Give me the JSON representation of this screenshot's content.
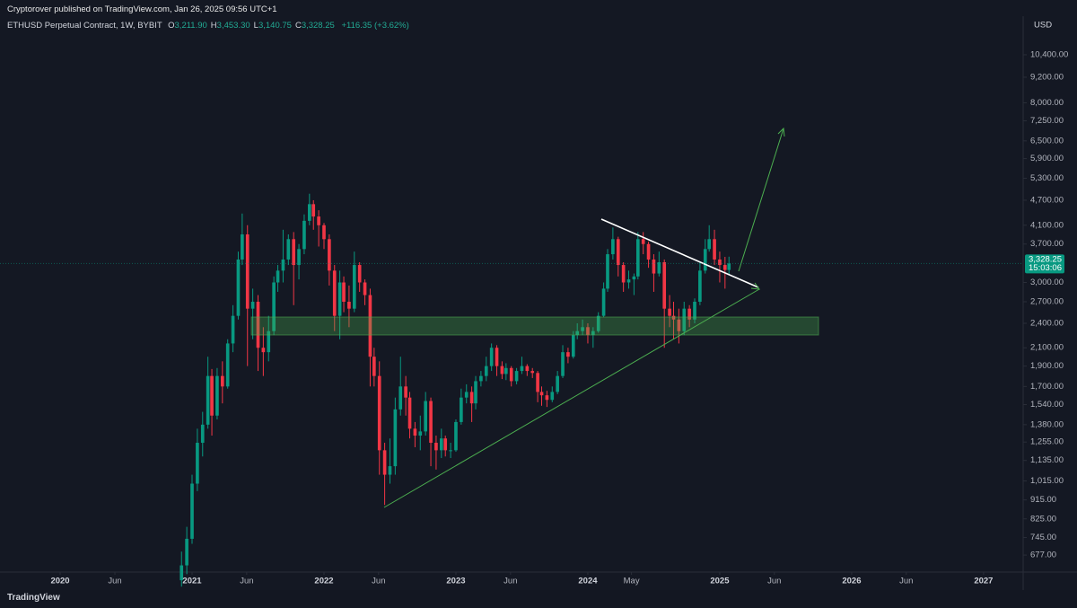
{
  "header": {
    "publisher": "Cryptorover published on TradingView.com, Jan 26, 2025 09:56 UTC+1"
  },
  "chart_data": {
    "type": "candlestick",
    "title": "ETHUSD Perpetual Contract, 1W, BYBIT",
    "ohlc_legend": [
      {
        "key": "O",
        "value": "3,211.90"
      },
      {
        "key": "H",
        "value": "3,453.30"
      },
      {
        "key": "L",
        "value": "3,140.75"
      },
      {
        "key": "C",
        "value": "3,328.25"
      }
    ],
    "change": "+116.35 (+3.62%)",
    "currency": "USD",
    "last_price": {
      "value": 3328.25,
      "label": "3,328.25"
    },
    "countdown": "15:03:06",
    "log_scale": true,
    "up_color": "#089981",
    "down_color": "#f23645",
    "x": [
      2020.92,
      2020.96,
      2021,
      2021.04,
      2021.08,
      2021.12,
      2021.15,
      2021.19,
      2021.23,
      2021.27,
      2021.31,
      2021.35,
      2021.38,
      2021.42,
      2021.46,
      2021.5,
      2021.54,
      2021.58,
      2021.62,
      2021.65,
      2021.69,
      2021.73,
      2021.77,
      2021.81,
      2021.85,
      2021.89,
      2021.92,
      2021.96,
      2022,
      2022.04,
      2022.08,
      2022.12,
      2022.15,
      2022.19,
      2022.23,
      2022.27,
      2022.31,
      2022.35,
      2022.38,
      2022.42,
      2022.46,
      2022.5,
      2022.54,
      2022.58,
      2022.62,
      2022.65,
      2022.69,
      2022.73,
      2022.77,
      2022.81,
      2022.85,
      2022.89,
      2022.92,
      2022.96,
      2023,
      2023.04,
      2023.08,
      2023.12,
      2023.15,
      2023.19,
      2023.23,
      2023.27,
      2023.31,
      2023.35,
      2023.38,
      2023.42,
      2023.46,
      2023.5,
      2023.54,
      2023.58,
      2023.62,
      2023.65,
      2023.69,
      2023.73,
      2023.77,
      2023.81,
      2023.85,
      2023.89,
      2023.92,
      2023.96,
      2024,
      2024.04,
      2024.08,
      2024.12,
      2024.15,
      2024.19,
      2024.23,
      2024.27,
      2024.31,
      2024.35,
      2024.38,
      2024.42,
      2024.46,
      2024.5,
      2024.54,
      2024.58,
      2024.62,
      2024.65,
      2024.69,
      2024.73,
      2024.77,
      2024.81,
      2024.85,
      2024.89,
      2024.92,
      2024.96,
      2025,
      2025.04,
      2025.07
    ],
    "open": [
      590,
      640,
      740,
      1000,
      1250,
      1380,
      1800,
      1450,
      1800,
      1700,
      2150,
      2500,
      3400,
      3900,
      2600,
      2700,
      2100,
      2050,
      2300,
      3000,
      3200,
      3400,
      3800,
      3300,
      3600,
      4200,
      4600,
      4300,
      4100,
      3800,
      3200,
      2500,
      3000,
      2700,
      2600,
      3300,
      3000,
      2800,
      2000,
      1800,
      1200,
      1050,
      1100,
      1500,
      1700,
      1600,
      1350,
      1300,
      1330,
      1570,
      1250,
      1200,
      1280,
      1200,
      1200,
      1400,
      1600,
      1650,
      1550,
      1750,
      1800,
      1900,
      2100,
      1900,
      1820,
      1880,
      1750,
      1850,
      1900,
      1850,
      1830,
      1650,
      1620,
      1580,
      1650,
      1800,
      2050,
      2000,
      2250,
      2300,
      2350,
      2250,
      2300,
      2500,
      2900,
      3500,
      3800,
      3300,
      3000,
      3050,
      3100,
      3800,
      3700,
      3400,
      3150,
      3350,
      2600,
      2500,
      2450,
      2300,
      2600,
      2450,
      2700,
      3200,
      3600,
      3800,
      3400,
      3300,
      3211.9
    ],
    "high": [
      690,
      790,
      1050,
      1350,
      1480,
      2000,
      1870,
      1880,
      1950,
      2200,
      2650,
      3550,
      4370,
      4100,
      2900,
      2800,
      2350,
      2500,
      3100,
      3300,
      4000,
      3900,
      3950,
      3700,
      4350,
      4870,
      4700,
      4450,
      4150,
      3900,
      3300,
      3200,
      3100,
      2950,
      3550,
      3350,
      3050,
      2900,
      2100,
      1950,
      1250,
      1280,
      1600,
      2000,
      1800,
      1650,
      1400,
      1450,
      1650,
      1600,
      1300,
      1350,
      1300,
      1250,
      1420,
      1680,
      1720,
      1700,
      1800,
      1850,
      2000,
      2150,
      2130,
      1950,
      1930,
      1900,
      1880,
      2000,
      1920,
      1880,
      1850,
      1700,
      1660,
      1700,
      1850,
      2130,
      2100,
      2300,
      2400,
      2450,
      2400,
      2350,
      2550,
      3000,
      3600,
      4050,
      3850,
      3350,
      3200,
      3150,
      3950,
      3950,
      3750,
      3500,
      3550,
      3400,
      2800,
      2700,
      2600,
      2700,
      2650,
      2750,
      3350,
      3800,
      4100,
      4000,
      3550,
      3450,
      3453.3
    ],
    "low": [
      570,
      610,
      720,
      960,
      1160,
      1350,
      1300,
      1420,
      1550,
      1680,
      2050,
      2450,
      3300,
      1900,
      2200,
      1850,
      1800,
      1950,
      2250,
      2850,
      3000,
      3300,
      2650,
      3050,
      3500,
      4100,
      4000,
      3650,
      3600,
      2950,
      2300,
      2200,
      2550,
      2350,
      2550,
      2850,
      2650,
      1700,
      1700,
      1050,
      890,
      1000,
      1050,
      1450,
      1450,
      1280,
      1220,
      1200,
      1300,
      1100,
      1080,
      1150,
      1160,
      1150,
      1190,
      1380,
      1550,
      1400,
      1500,
      1700,
      1750,
      1850,
      1800,
      1770,
      1760,
      1700,
      1720,
      1820,
      1800,
      1780,
      1560,
      1530,
      1520,
      1560,
      1630,
      1780,
      1930,
      1980,
      2200,
      2250,
      2150,
      2100,
      2280,
      2480,
      2850,
      3400,
      3100,
      2850,
      2900,
      2800,
      3050,
      3500,
      3250,
      2850,
      3100,
      2100,
      2350,
      2200,
      2150,
      2250,
      2350,
      2400,
      2650,
      3150,
      3550,
      3300,
      3000,
      2900,
      3140.75
    ],
    "close": [
      640,
      740,
      1000,
      1250,
      1380,
      1800,
      1450,
      1800,
      1700,
      2150,
      2500,
      3400,
      3900,
      2600,
      2700,
      2100,
      2050,
      2300,
      3000,
      3200,
      3400,
      3800,
      3300,
      3600,
      4200,
      4600,
      4300,
      4100,
      3800,
      3200,
      2500,
      3000,
      2700,
      2600,
      3300,
      3000,
      2800,
      2000,
      1800,
      1200,
      1050,
      1100,
      1500,
      1700,
      1600,
      1350,
      1300,
      1330,
      1570,
      1250,
      1200,
      1280,
      1200,
      1200,
      1400,
      1600,
      1650,
      1550,
      1750,
      1800,
      1900,
      2100,
      1900,
      1820,
      1880,
      1750,
      1850,
      1900,
      1850,
      1830,
      1650,
      1620,
      1580,
      1650,
      1800,
      2050,
      2000,
      2250,
      2300,
      2350,
      2250,
      2300,
      2500,
      2900,
      3500,
      3800,
      3300,
      3000,
      3050,
      3100,
      3800,
      3700,
      3400,
      3150,
      3350,
      2600,
      2500,
      2450,
      2300,
      2600,
      2450,
      2700,
      3200,
      3600,
      3800,
      3400,
      3300,
      3211.9,
      3328.25
    ],
    "xlim": [
      2019.544,
      2027.3
    ],
    "xticks": [
      {
        "value": 2020,
        "label": "2020"
      },
      {
        "value": 2020.415,
        "label": "Jun"
      },
      {
        "value": 2021,
        "label": "2021"
      },
      {
        "value": 2021.414,
        "label": "Jun"
      },
      {
        "value": 2022,
        "label": "2022"
      },
      {
        "value": 2022.414,
        "label": "Jun"
      },
      {
        "value": 2023,
        "label": "2023"
      },
      {
        "value": 2023.414,
        "label": "Jun"
      },
      {
        "value": 2024,
        "label": "2024"
      },
      {
        "value": 2024.331,
        "label": "May"
      },
      {
        "value": 2025,
        "label": "2025"
      },
      {
        "value": 2025.414,
        "label": "Jun"
      },
      {
        "value": 2026,
        "label": "2026"
      },
      {
        "value": 2026.414,
        "label": "Jun"
      },
      {
        "value": 2027,
        "label": "2027"
      }
    ],
    "ylim": [
      617,
      12840
    ],
    "yticks": [
      {
        "value": 677,
        "label": "677.00"
      },
      {
        "value": 745,
        "label": "745.00"
      },
      {
        "value": 825,
        "label": "825.00"
      },
      {
        "value": 915,
        "label": "915.00"
      },
      {
        "value": 1015,
        "label": "1,015.00"
      },
      {
        "value": 1135,
        "label": "1,135.00"
      },
      {
        "value": 1255,
        "label": "1,255.00"
      },
      {
        "value": 1380,
        "label": "1,380.00"
      },
      {
        "value": 1540,
        "label": "1,540.00"
      },
      {
        "value": 1700,
        "label": "1,700.00"
      },
      {
        "value": 1900,
        "label": "1,900.00"
      },
      {
        "value": 2100,
        "label": "2,100.00"
      },
      {
        "value": 2400,
        "label": "2,400.00"
      },
      {
        "value": 2700,
        "label": "2,700.00"
      },
      {
        "value": 3000,
        "label": "3,000.00"
      },
      {
        "value": 3700,
        "label": "3,700.00"
      },
      {
        "value": 4100,
        "label": "4,100.00"
      },
      {
        "value": 4700,
        "label": "4,700.00"
      },
      {
        "value": 5300,
        "label": "5,300.00"
      },
      {
        "value": 5900,
        "label": "5,900.00"
      },
      {
        "value": 6500,
        "label": "6,500.00"
      },
      {
        "value": 7250,
        "label": "7,250.00"
      },
      {
        "value": 8000,
        "label": "8,000.00"
      },
      {
        "value": 9200,
        "label": "9,200.00"
      },
      {
        "value": 10400,
        "label": "10,400.00"
      }
    ]
  },
  "footer": {
    "brand": "TradingView"
  }
}
